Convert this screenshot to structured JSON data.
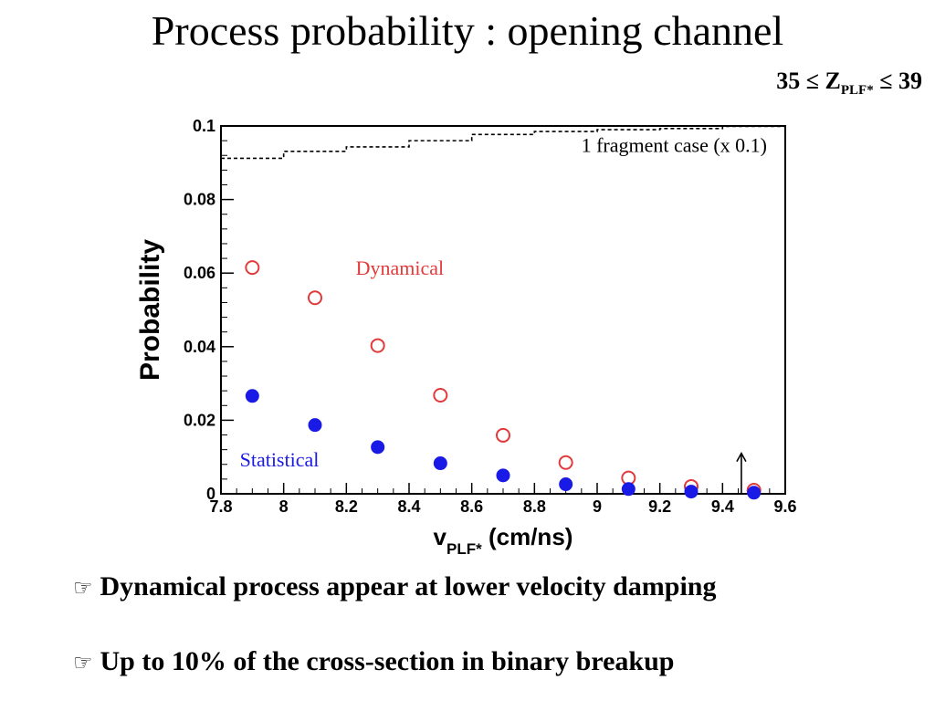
{
  "slide": {
    "title": "Process probability : opening channel",
    "z_range": {
      "lead": "35 ≤ Z",
      "sub": "PLF*",
      "tail": " ≤ 39"
    }
  },
  "chart_data": {
    "type": "scatter",
    "title": "",
    "xlabel": "v",
    "xlabel_sub": "PLF*",
    "xlabel_unit": " (cm/ns)",
    "ylabel": "Probability",
    "xlim": [
      7.8,
      9.6
    ],
    "ylim": [
      0,
      0.1
    ],
    "x_ticks": [
      "7.8",
      "8",
      "8.2",
      "8.4",
      "8.6",
      "8.8",
      "9",
      "9.2",
      "9.4",
      "9.6"
    ],
    "y_ticks": [
      "0",
      "0.02",
      "0.04",
      "0.06",
      "0.08",
      "0.1"
    ],
    "series": [
      {
        "name": "Dynamical",
        "marker": "open-circle",
        "color": "#e23a3a",
        "x": [
          7.9,
          8.1,
          8.3,
          8.5,
          8.7,
          8.9,
          9.1,
          9.3,
          9.5
        ],
        "y": [
          0.0615,
          0.0533,
          0.0403,
          0.0268,
          0.0159,
          0.0085,
          0.0043,
          0.002,
          0.001
        ]
      },
      {
        "name": "Statistical",
        "marker": "filled-circle",
        "color": "#1a1ae6",
        "x": [
          7.9,
          8.1,
          8.3,
          8.5,
          8.7,
          8.9,
          9.1,
          9.3,
          9.5
        ],
        "y": [
          0.0266,
          0.0187,
          0.0127,
          0.0083,
          0.005,
          0.0026,
          0.0013,
          0.0006,
          0.0003
        ]
      },
      {
        "name": "1 fragment case (x 0.1)",
        "marker": "dashed-step",
        "color": "#000000",
        "edges": [
          7.8,
          8.0,
          8.2,
          8.4,
          8.6,
          8.8,
          9.0,
          9.2,
          9.4,
          9.6
        ],
        "y": [
          0.0912,
          0.0931,
          0.0943,
          0.096,
          0.0977,
          0.0985,
          0.099,
          0.0993,
          0.0999
        ]
      }
    ],
    "annotation_arrow": {
      "x": 9.46,
      "y_from": 0.0,
      "y_to": 0.011
    },
    "grid": false,
    "legend": "inline labels"
  },
  "bullets": [
    {
      "icon": "pointing-hand-icon",
      "text": "Dynamical process appear at lower velocity damping"
    },
    {
      "icon": "pointing-hand-icon",
      "text": "Up to 10% of the cross-section in binary breakup"
    }
  ],
  "colors": {
    "dynamical": "#e23a3a",
    "statistical": "#1a1ae6",
    "axes": "#000000"
  }
}
